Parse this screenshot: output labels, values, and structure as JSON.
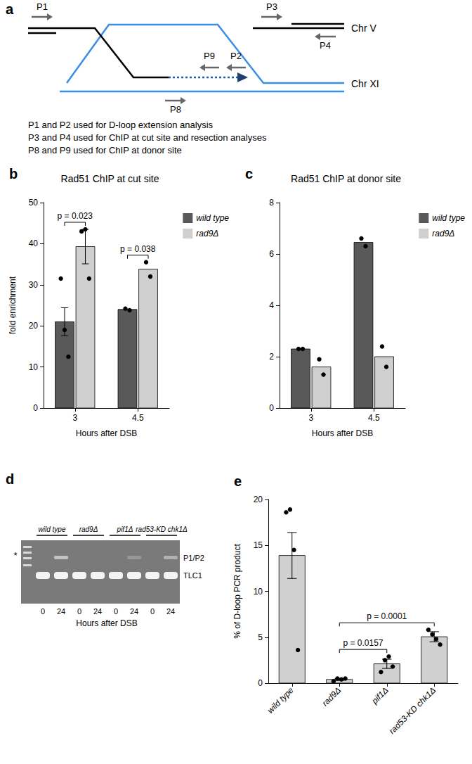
{
  "diagram": {
    "panel_label": "a",
    "chromosomes": [
      "Chr V",
      "Chr XI"
    ],
    "primers": [
      "P1",
      "P2",
      "P3",
      "P4",
      "P8",
      "P9"
    ],
    "notes": [
      "P1 and P2 used for D-loop extension analysis",
      "P3 and P4 used for ChIP at cut site and resection analyses",
      "P8 and P9 used for ChIP at donor site"
    ]
  },
  "chart_data": [
    {
      "panel_label": "b",
      "type": "bar",
      "title": "Rad51 ChIP at cut site",
      "categories": [
        "3",
        "4.5"
      ],
      "x_label": "Hours after DSB",
      "y_label": "fold enrichment",
      "series": [
        {
          "name": "wild type",
          "color": "#595959",
          "values": [
            21,
            24
          ],
          "error": [
            3.4,
            null
          ],
          "points": [
            [
              31.5,
              19,
              12.5
            ],
            [
              24.2,
              23.8
            ]
          ]
        },
        {
          "name": "rad9Δ",
          "color": "#cfcfcf",
          "values": [
            39.3,
            33.8
          ],
          "error": [
            4.2,
            null
          ],
          "points": [
            [
              43,
              43.5,
              31.5
            ],
            [
              35.5,
              32
            ]
          ]
        }
      ],
      "ylim": [
        0,
        50
      ],
      "yticks": [
        0,
        10,
        20,
        30,
        40,
        50
      ],
      "grid": false,
      "legend": "right",
      "annotations": [
        {
          "category": "3",
          "text": "p = 0.023"
        },
        {
          "category": "4.5",
          "text": "p = 0.038"
        }
      ]
    },
    {
      "panel_label": "c",
      "type": "bar",
      "title": "Rad51 ChIP at donor site",
      "categories": [
        "3",
        "4.5"
      ],
      "x_label": "Hours after DSB",
      "series": [
        {
          "name": "wild type",
          "color": "#595959",
          "values": [
            2.3,
            6.45
          ],
          "points": [
            [
              2.3,
              2.3
            ],
            [
              6.6,
              6.3
            ]
          ]
        },
        {
          "name": "rad9Δ",
          "color": "#cfcfcf",
          "values": [
            1.6,
            2.0
          ],
          "points": [
            [
              1.9,
              1.3
            ],
            [
              2.4,
              1.6
            ]
          ]
        }
      ],
      "ylim": [
        0,
        8
      ],
      "yticks": [
        0,
        2,
        4,
        6,
        8
      ],
      "grid": false,
      "legend": "right"
    },
    {
      "panel_label": "e",
      "type": "bar",
      "categories": [
        "wild type",
        "rad9Δ",
        "pif1Δ",
        "rad53-KD chk1Δ"
      ],
      "y_label": "% of D-loop PCR product",
      "color": "#d0d0d0",
      "values": [
        13.9,
        0.4,
        2.1,
        5.05
      ],
      "error": [
        2.5,
        0.1,
        0.5,
        0.55
      ],
      "points": [
        [
          18.6,
          18.9,
          14.5,
          3.6
        ],
        [
          0.2,
          0.5,
          0.4,
          0.5
        ],
        [
          1.2,
          2.5,
          2.9,
          1.8
        ],
        [
          5.8,
          5.3,
          4.8,
          4.2
        ]
      ],
      "ylim": [
        0,
        20
      ],
      "yticks": [
        0,
        5,
        10,
        15,
        20
      ],
      "grid": false,
      "annotations": [
        {
          "from": "rad9Δ",
          "to": "pif1Δ",
          "text": "p = 0.0157"
        },
        {
          "from": "rad9Δ",
          "to": "rad53-KD chk1Δ",
          "text": "p = 0.0001"
        }
      ]
    }
  ],
  "gel": {
    "panel_label": "d",
    "groups": [
      "wild type",
      "rad9Δ",
      "pif1Δ",
      "rad53-KD chk1Δ"
    ],
    "lanes": [
      "0",
      "24"
    ],
    "x_label": "Hours after DSB",
    "ladder_mark": "*",
    "bands": [
      {
        "label": "P1/P2",
        "intensity": [
          0,
          0.6,
          0,
          0,
          0,
          0.25,
          0,
          0.45
        ]
      },
      {
        "label": "TLC1",
        "intensity": [
          1,
          1,
          1,
          1,
          1,
          1,
          1,
          1
        ]
      }
    ]
  }
}
